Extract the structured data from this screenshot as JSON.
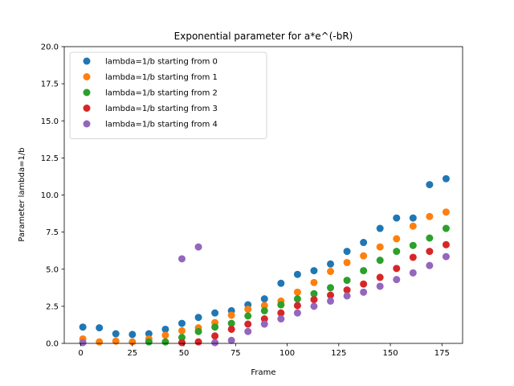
{
  "chart_data": {
    "type": "scatter",
    "title": "Exponential parameter for a*e^(-bR)",
    "xlabel": "Frame",
    "ylabel": "Parameter lambda=1/b",
    "xlim": [
      -8,
      185
    ],
    "ylim": [
      0,
      20
    ],
    "xticks": [
      0,
      25,
      50,
      75,
      100,
      125,
      150,
      175
    ],
    "yticks": [
      0.0,
      2.5,
      5.0,
      7.5,
      10.0,
      12.5,
      15.0,
      17.5,
      20.0
    ],
    "ytick_labels": [
      "0.0",
      "2.5",
      "5.0",
      "7.5",
      "10.0",
      "12.5",
      "15.0",
      "17.5",
      "20.0"
    ],
    "legend_position": "upper-left",
    "grid": false,
    "series": [
      {
        "name": "lambda=1/b starting from 0",
        "color": "#1f77b4",
        "points": [
          [
            1,
            1.1
          ],
          [
            9,
            1.05
          ],
          [
            17,
            0.65
          ],
          [
            25,
            0.6
          ],
          [
            33,
            0.65
          ],
          [
            41,
            0.95
          ],
          [
            49,
            1.35
          ],
          [
            57,
            1.75
          ],
          [
            65,
            2.05
          ],
          [
            73,
            2.2
          ],
          [
            81,
            2.6
          ],
          [
            89,
            3.0
          ],
          [
            97,
            4.05
          ],
          [
            105,
            4.65
          ],
          [
            113,
            4.9
          ],
          [
            121,
            5.35
          ],
          [
            129,
            6.2
          ],
          [
            137,
            6.8
          ],
          [
            145,
            7.75
          ],
          [
            153,
            8.45
          ],
          [
            161,
            8.45
          ],
          [
            169,
            10.7
          ],
          [
            177,
            11.1
          ]
        ]
      },
      {
        "name": "lambda=1/b starting from 1",
        "color": "#ff7f0e",
        "points": [
          [
            1,
            0.3
          ],
          [
            9,
            0.1
          ],
          [
            17,
            0.15
          ],
          [
            25,
            0.1
          ],
          [
            33,
            0.3
          ],
          [
            41,
            0.55
          ],
          [
            49,
            0.85
          ],
          [
            57,
            1.05
          ],
          [
            65,
            1.4
          ],
          [
            73,
            1.9
          ],
          [
            81,
            2.3
          ],
          [
            89,
            2.55
          ],
          [
            97,
            2.85
          ],
          [
            105,
            3.45
          ],
          [
            113,
            4.1
          ],
          [
            121,
            4.85
          ],
          [
            129,
            5.45
          ],
          [
            137,
            5.9
          ],
          [
            145,
            6.5
          ],
          [
            153,
            7.05
          ],
          [
            161,
            7.9
          ],
          [
            169,
            8.55
          ],
          [
            177,
            8.85
          ]
        ]
      },
      {
        "name": "lambda=1/b starting from 2",
        "color": "#2ca02c",
        "points": [
          [
            33,
            0.1
          ],
          [
            41,
            0.1
          ],
          [
            49,
            0.4
          ],
          [
            57,
            0.8
          ],
          [
            65,
            1.1
          ],
          [
            73,
            1.35
          ],
          [
            81,
            1.85
          ],
          [
            89,
            2.2
          ],
          [
            97,
            2.6
          ],
          [
            105,
            3.0
          ],
          [
            113,
            3.35
          ],
          [
            121,
            3.75
          ],
          [
            129,
            4.25
          ],
          [
            137,
            4.9
          ],
          [
            145,
            5.6
          ],
          [
            153,
            6.2
          ],
          [
            161,
            6.6
          ],
          [
            169,
            7.1
          ],
          [
            177,
            7.75
          ]
        ]
      },
      {
        "name": "lambda=1/b starting from 3",
        "color": "#d62728",
        "points": [
          [
            49,
            0.05
          ],
          [
            57,
            0.1
          ],
          [
            65,
            0.5
          ],
          [
            73,
            0.95
          ],
          [
            81,
            1.3
          ],
          [
            89,
            1.65
          ],
          [
            97,
            2.05
          ],
          [
            105,
            2.55
          ],
          [
            113,
            2.95
          ],
          [
            121,
            3.25
          ],
          [
            129,
            3.6
          ],
          [
            137,
            4.0
          ],
          [
            145,
            4.45
          ],
          [
            153,
            5.05
          ],
          [
            161,
            5.8
          ],
          [
            169,
            6.2
          ],
          [
            177,
            6.65
          ]
        ]
      },
      {
        "name": "lambda=1/b starting from 4",
        "color": "#9467bd",
        "points": [
          [
            1,
            0.05
          ],
          [
            49,
            5.7
          ],
          [
            57,
            6.5
          ],
          [
            65,
            0.05
          ],
          [
            73,
            0.2
          ],
          [
            81,
            0.8
          ],
          [
            89,
            1.3
          ],
          [
            97,
            1.65
          ],
          [
            105,
            2.05
          ],
          [
            113,
            2.5
          ],
          [
            121,
            2.85
          ],
          [
            129,
            3.2
          ],
          [
            137,
            3.45
          ],
          [
            145,
            3.85
          ],
          [
            153,
            4.3
          ],
          [
            161,
            4.75
          ],
          [
            169,
            5.25
          ],
          [
            177,
            5.85
          ]
        ]
      }
    ]
  }
}
